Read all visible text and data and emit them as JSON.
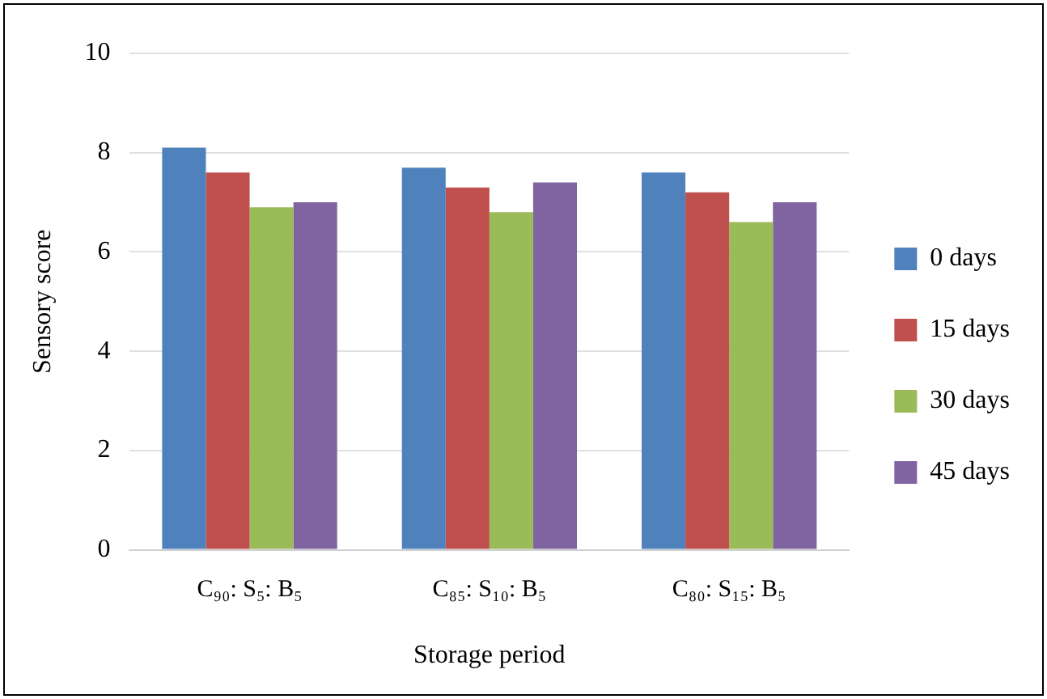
{
  "chart_data": {
    "type": "bar",
    "xlabel": "Storage period",
    "ylabel": "Sensory score",
    "categories": [
      "C₉₀: S₅: B₅",
      "C₈₅: S₁₀: B₅",
      "C₈₀: S₁₅: B₅"
    ],
    "series": [
      {
        "name": "0 days",
        "color": "#4f81bd",
        "values": [
          8.1,
          7.7,
          7.6
        ]
      },
      {
        "name": "15 days",
        "color": "#c0504d",
        "values": [
          7.6,
          7.3,
          7.2
        ]
      },
      {
        "name": "30 days",
        "color": "#9bbb59",
        "values": [
          6.9,
          6.8,
          6.6
        ]
      },
      {
        "name": "45 days",
        "color": "#8064a2",
        "values": [
          7.0,
          7.4,
          7.0
        ]
      }
    ],
    "ylim": [
      0,
      10
    ],
    "yticks": [
      0,
      2,
      4,
      6,
      8,
      10
    ],
    "grid": "y",
    "legend": "right"
  }
}
